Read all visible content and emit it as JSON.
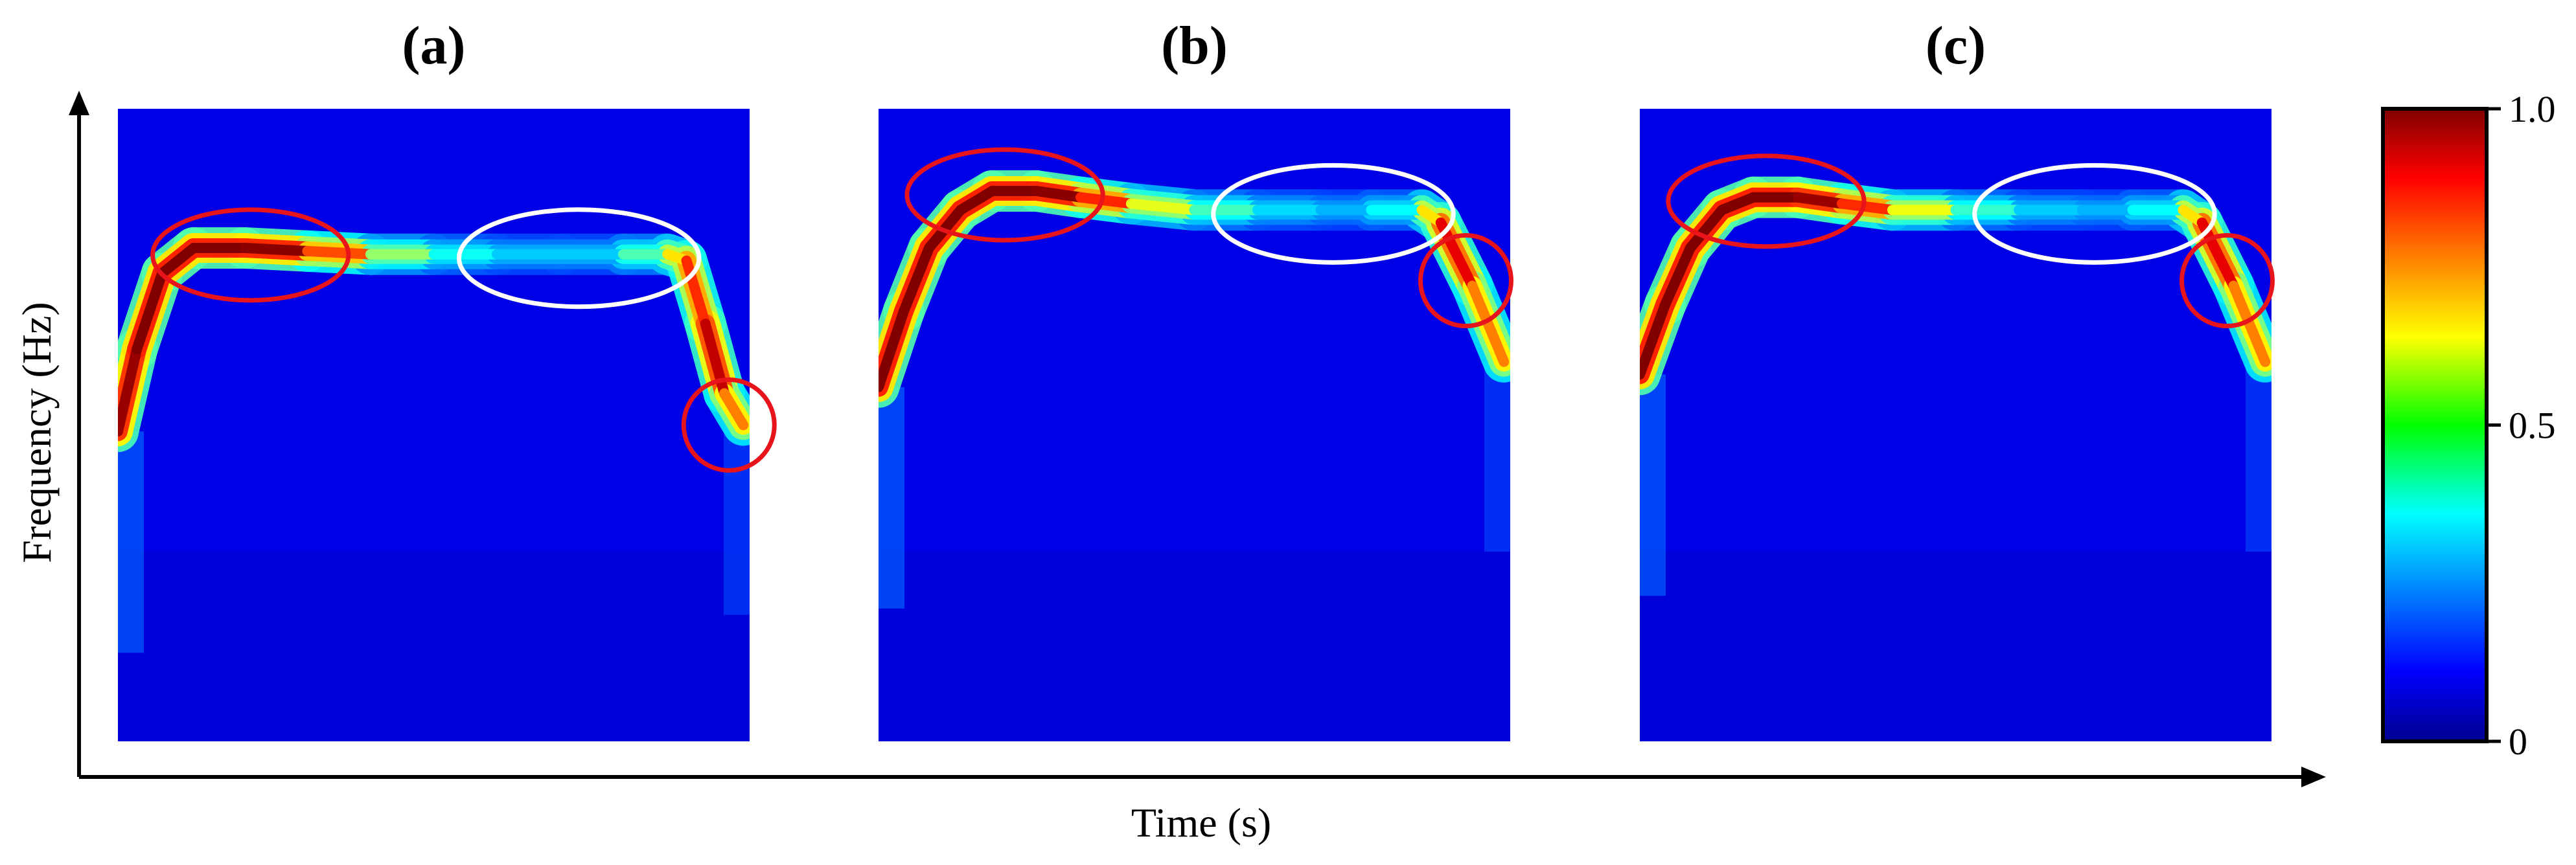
{
  "chart_data": {
    "type": "heatmap",
    "subplot_labels": [
      "(a)",
      "(b)",
      "(c)"
    ],
    "xlabel": "Time (s)",
    "ylabel": "Frequency (Hz)",
    "colorbar": {
      "colormap": "jet",
      "ticks": [
        {
          "value": 1.0,
          "label": "1.0"
        },
        {
          "value": 0.5,
          "label": "0.5"
        },
        {
          "value": 0,
          "label": "0"
        }
      ],
      "range": [
        0,
        1
      ]
    },
    "annotation_colors": {
      "highlight": "#e8141c",
      "reference": "#ffffff"
    },
    "panels": [
      {
        "label": "(a)",
        "ridge": {
          "t": [
            0.0,
            0.03,
            0.07,
            0.12,
            0.2,
            0.3,
            0.4,
            0.5,
            0.6,
            0.7,
            0.8,
            0.87,
            0.9,
            0.93,
            0.96,
            0.99
          ],
          "f": [
            0.49,
            0.62,
            0.74,
            0.78,
            0.78,
            0.775,
            0.77,
            0.77,
            0.77,
            0.77,
            0.77,
            0.77,
            0.76,
            0.66,
            0.55,
            0.5
          ],
          "amp": [
            0.95,
            1.0,
            1.0,
            1.0,
            1.0,
            0.98,
            0.62,
            0.42,
            0.35,
            0.3,
            0.35,
            0.55,
            0.75,
            0.92,
            0.95,
            0.55
          ]
        }
      },
      {
        "label": "(b)",
        "ridge": {
          "t": [
            0.0,
            0.04,
            0.08,
            0.13,
            0.18,
            0.25,
            0.32,
            0.4,
            0.5,
            0.6,
            0.7,
            0.78,
            0.86,
            0.89,
            0.94,
            0.99
          ],
          "f": [
            0.56,
            0.68,
            0.78,
            0.84,
            0.87,
            0.87,
            0.86,
            0.85,
            0.84,
            0.84,
            0.84,
            0.84,
            0.84,
            0.82,
            0.72,
            0.6
          ],
          "amp": [
            1.0,
            1.0,
            1.0,
            1.0,
            1.0,
            1.0,
            0.98,
            0.7,
            0.5,
            0.38,
            0.3,
            0.3,
            0.45,
            0.85,
            0.95,
            0.55
          ]
        }
      },
      {
        "label": "(c)",
        "ridge": {
          "t": [
            0.0,
            0.04,
            0.08,
            0.13,
            0.18,
            0.25,
            0.32,
            0.4,
            0.5,
            0.6,
            0.7,
            0.78,
            0.86,
            0.89,
            0.94,
            0.99
          ],
          "f": [
            0.58,
            0.69,
            0.78,
            0.84,
            0.86,
            0.86,
            0.85,
            0.84,
            0.84,
            0.84,
            0.84,
            0.84,
            0.84,
            0.82,
            0.72,
            0.6
          ],
          "amp": [
            1.0,
            1.0,
            1.0,
            1.0,
            1.0,
            1.0,
            0.95,
            0.72,
            0.5,
            0.35,
            0.3,
            0.3,
            0.45,
            0.85,
            0.95,
            0.55
          ]
        }
      }
    ]
  }
}
